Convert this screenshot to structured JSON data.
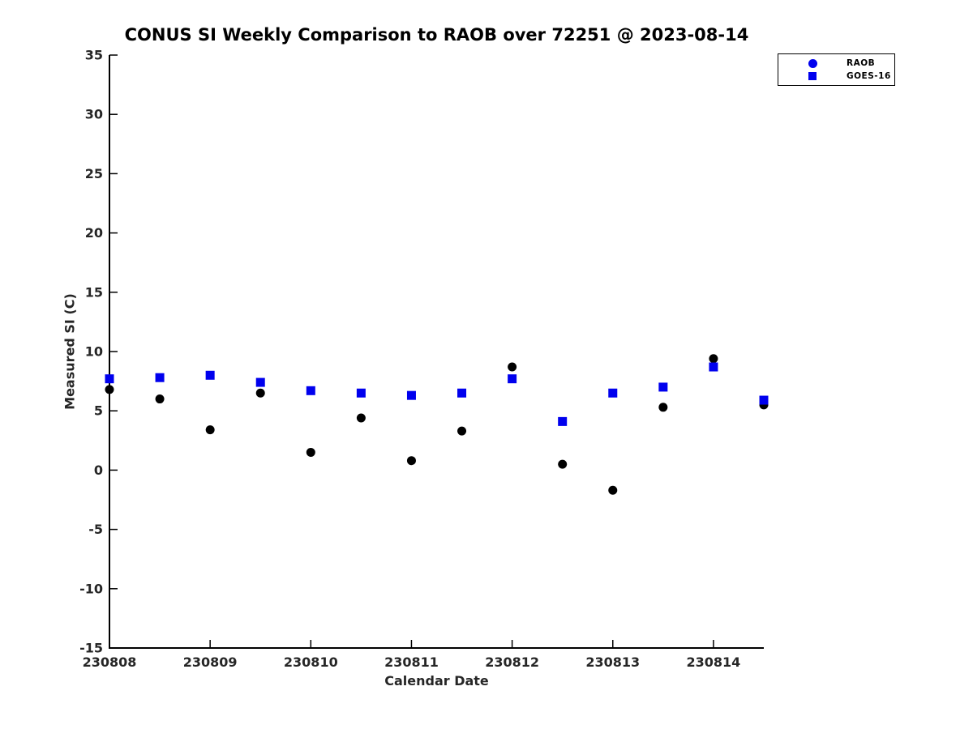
{
  "title": "CONUS SI Weekly Comparison to RAOB over 72251 @ 2023-08-14",
  "axes": {
    "xlabel": "Calendar Date",
    "ylabel": "Measured SI (C)"
  },
  "legend": {
    "items": [
      {
        "label": "RAOB",
        "marker": "circle",
        "marker_color": "#0000ee"
      },
      {
        "label": "GOES-16",
        "marker": "square",
        "marker_color": "#0000ee"
      }
    ]
  },
  "colors": {
    "raob_plot_marker": "#000000",
    "goes_plot_marker": "#0000ee",
    "axis_line": "#000000",
    "tick_text": "#262626"
  },
  "chart_data": {
    "type": "scatter",
    "title": "CONUS SI Weekly Comparison to RAOB over 72251 @ 2023-08-14",
    "xlabel": "Calendar Date",
    "ylabel": "Measured SI (C)",
    "xlim": [
      230808,
      230814.5
    ],
    "ylim": [
      -15,
      35
    ],
    "x_ticks": [
      230808,
      230809,
      230810,
      230811,
      230812,
      230813,
      230814
    ],
    "y_ticks": [
      -15,
      -10,
      -5,
      0,
      5,
      10,
      15,
      20,
      25,
      30,
      35
    ],
    "grid": false,
    "legend_position": "top-right",
    "x": [
      230808.0,
      230808.5,
      230809.0,
      230809.5,
      230810.0,
      230810.5,
      230811.0,
      230811.5,
      230812.0,
      230812.5,
      230813.0,
      230813.5,
      230814.0,
      230814.5
    ],
    "series": [
      {
        "name": "RAOB",
        "marker": "circle",
        "color": "#000000",
        "values": [
          6.8,
          6.0,
          3.4,
          6.5,
          1.5,
          4.4,
          0.8,
          3.3,
          8.7,
          0.5,
          -1.7,
          5.3,
          9.4,
          5.5
        ]
      },
      {
        "name": "GOES-16",
        "marker": "square",
        "color": "#0000ee",
        "values": [
          7.7,
          7.8,
          8.0,
          7.4,
          6.7,
          6.5,
          6.3,
          6.5,
          7.7,
          4.1,
          6.5,
          7.0,
          8.7,
          5.9
        ]
      }
    ]
  }
}
